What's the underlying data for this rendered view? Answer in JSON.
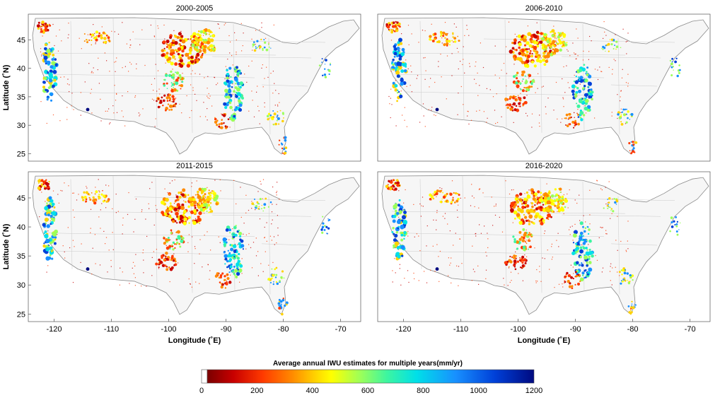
{
  "figure": {
    "colorbar": {
      "title": "Average annual IWU estimates for multiple years(mm/yr)",
      "ticks": [
        "0",
        "200",
        "400",
        "600",
        "800",
        "1000",
        "1200"
      ],
      "range": [
        0,
        1200
      ]
    },
    "axes": {
      "xlabel": "Longitude (˚E)",
      "ylabel": "Latitude (˚N)",
      "xticks": [
        "-120",
        "-110",
        "-100",
        "-90",
        "-80",
        "-70"
      ],
      "yticks": [
        "45",
        "40",
        "35",
        "30",
        "25"
      ]
    },
    "panels": [
      {
        "title": "2000-2005"
      },
      {
        "title": "2006-2010"
      },
      {
        "title": "2011-2015"
      },
      {
        "title": "2016-2020"
      }
    ]
  },
  "colors": {
    "map_background": "#f6f6f6",
    "frame": "#555555",
    "outline": "#8a8a8a",
    "colormap": [
      "#7a0000",
      "#c80000",
      "#ff3a00",
      "#ff8a00",
      "#ffd200",
      "#ffff00",
      "#9bff5a",
      "#3df5a0",
      "#00e0e8",
      "#1890ff",
      "#0040d8",
      "#000a80"
    ]
  }
}
